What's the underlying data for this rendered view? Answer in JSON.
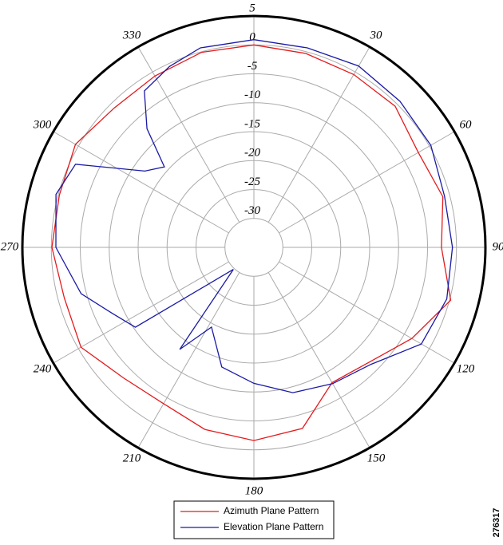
{
  "chart_data": {
    "type": "polar",
    "rlim": [
      -35,
      5
    ],
    "rticks": [
      5,
      0,
      -5,
      -10,
      -15,
      -20,
      -25,
      -30
    ],
    "thetaticks": [
      30,
      60,
      90,
      120,
      150,
      180,
      210,
      240,
      270,
      300,
      330
    ],
    "grid": true,
    "series": [
      {
        "name": "Azimuth Plane Pattern",
        "color": "#e41a1c",
        "theta": [
          0,
          15,
          30,
          45,
          60,
          75,
          90,
          105,
          120,
          135,
          150,
          165,
          180,
          195,
          210,
          225,
          240,
          255,
          270,
          285,
          300,
          315,
          330,
          345,
          360
        ],
        "values": [
          0,
          -0.3,
          -0.5,
          -0.5,
          -2.2,
          -1.2,
          -2.6,
          0.2,
          -3.5,
          -6.9,
          -8,
          -2.6,
          -1.6,
          -2.4,
          -3.8,
          -3.1,
          -0.5,
          -1.1,
          -0.1,
          -0.2,
          0.6,
          -0.9,
          -0.8,
          -0.1,
          0
        ]
      },
      {
        "name": "Elevation Plane Pattern",
        "color": "#1a1aa6",
        "theta": [
          0,
          15,
          30,
          45,
          60,
          75,
          90,
          105,
          120,
          135,
          150,
          165,
          180,
          195,
          208,
          216,
          223,
          236,
          245,
          255,
          270,
          285,
          295,
          305,
          312,
          318,
          325,
          335,
          345,
          360
        ],
        "values": [
          0.9,
          0.7,
          1.2,
          0.7,
          0.3,
          -0.9,
          -0.7,
          -0.5,
          -1.6,
          -6.4,
          -7.8,
          -9,
          -11.5,
          -13.6,
          -19.4,
          -13.2,
          -29.8,
          -10.3,
          -8,
          -4.1,
          -0.8,
          0.4,
          -1,
          -12,
          -14.2,
          -7.4,
          -2,
          -0.5,
          0.7,
          0.9
        ]
      }
    ],
    "figure_id": "276317"
  }
}
